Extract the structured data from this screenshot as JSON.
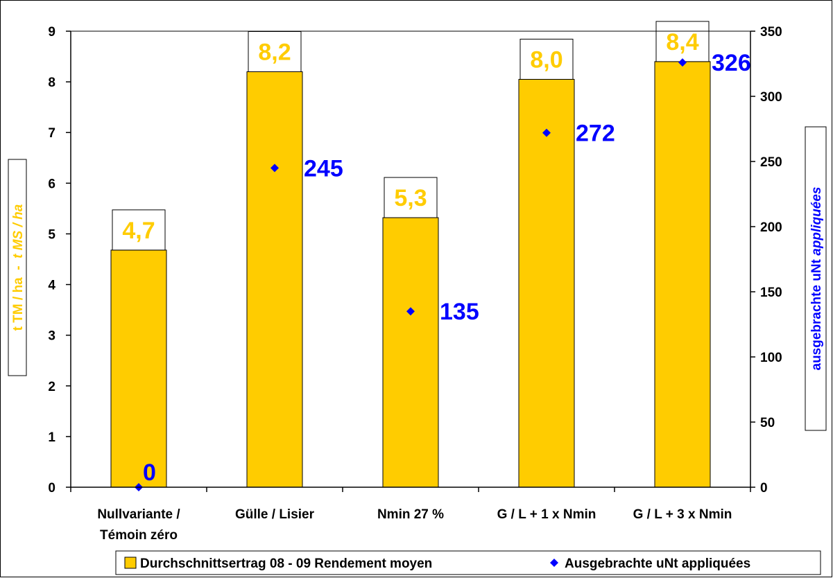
{
  "chart_data": {
    "type": "bar",
    "categories": [
      [
        "Nullvariante /",
        "Témoin zéro"
      ],
      [
        "Gülle / Lisier"
      ],
      [
        "Nmin 27 %"
      ],
      [
        "G / L + 1 x Nmin"
      ],
      [
        "G / L + 3 x Nmin"
      ]
    ],
    "series": [
      {
        "name": "Durchschnittsertrag 08 - 09 Rendement moyen",
        "axis": "left",
        "kind": "bar",
        "values": [
          4.68,
          8.2,
          5.32,
          8.05,
          8.4
        ],
        "labels": [
          "4,7",
          "8,2",
          "5,3",
          "8,0",
          "8,4"
        ],
        "color": "#ffcc00"
      },
      {
        "name": "Ausgebrachte uNt appliquées",
        "axis": "right",
        "kind": "scatter",
        "values": [
          0,
          245,
          135,
          272,
          326
        ],
        "labels": [
          "0",
          "245",
          "135",
          "272",
          "326"
        ],
        "color": "#0000ff"
      }
    ],
    "y_left": {
      "label_parts": [
        "t TM / ha",
        "  -  ",
        "t MS / ha"
      ],
      "ticks": [
        "0",
        "1",
        "2",
        "3",
        "4",
        "5",
        "6",
        "7",
        "8",
        "9"
      ],
      "ylim": [
        0,
        9
      ]
    },
    "y_right": {
      "label_parts": [
        "ausgebrachte uNt",
        " ",
        "appliquées"
      ],
      "ticks": [
        "0",
        "50",
        "100",
        "150",
        "200",
        "250",
        "300",
        "350"
      ],
      "ylim": [
        0,
        350
      ]
    },
    "legend": {
      "position": "bottom",
      "entries": [
        "Durchschnittsertrag 08 - 09 Rendement moyen",
        "Ausgebrachte uNt appliquées"
      ]
    },
    "colors": {
      "bar": "#ffcc00",
      "bar_label": "#ffcc00",
      "marker": "#0000ff",
      "marker_label": "#0000ff",
      "axis": "#000000"
    },
    "grid": false
  }
}
